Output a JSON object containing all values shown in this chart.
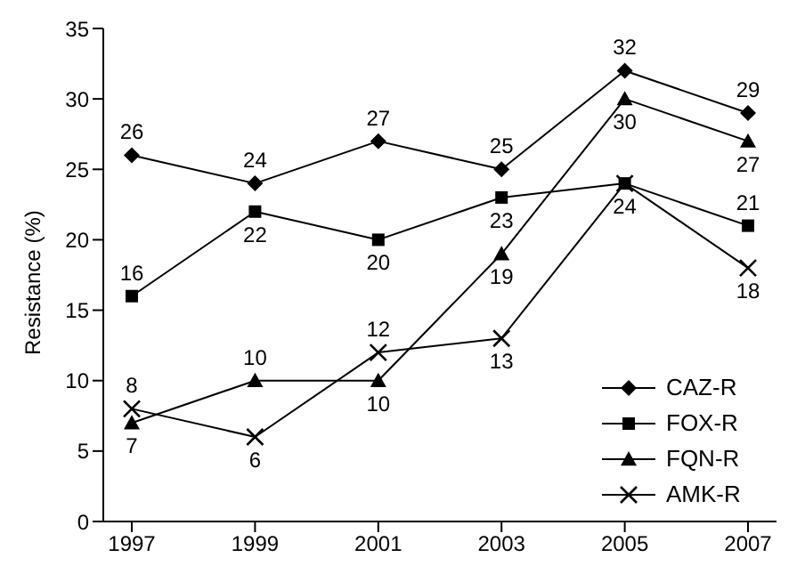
{
  "chart_data": {
    "type": "line",
    "ylabel": "Resistance (%)",
    "categories": [
      "1997",
      "1999",
      "2001",
      "2003",
      "2005",
      "2007"
    ],
    "series": [
      {
        "name": "CAZ-R",
        "color": "#000000",
        "marker": "diamond",
        "values": [
          26,
          24,
          27,
          25,
          32,
          29
        ],
        "value_labels": [
          "26",
          "24",
          "27",
          "25",
          "32",
          "29"
        ]
      },
      {
        "name": "FOX-R",
        "color": "#000000",
        "marker": "square",
        "values": [
          16,
          22,
          20,
          23,
          24,
          21
        ],
        "value_labels": [
          "16",
          "22",
          "20",
          "23",
          null,
          "21"
        ]
      },
      {
        "name": "FQN-R",
        "color": "#000000",
        "marker": "triangle",
        "values": [
          7,
          10,
          10,
          19,
          30,
          27
        ],
        "value_labels": [
          "7",
          "10",
          "10",
          "19",
          "30",
          "27"
        ]
      },
      {
        "name": "AMK-R",
        "color": "#000000",
        "marker": "cross",
        "values": [
          8,
          6,
          12,
          13,
          24,
          18
        ],
        "value_labels": [
          "8",
          "6",
          "12",
          "13",
          "24",
          "18"
        ]
      }
    ],
    "ylim": [
      0,
      35
    ],
    "yticks": [
      0,
      5,
      10,
      15,
      20,
      25,
      30,
      35
    ],
    "legend": "bottom right",
    "line_style": "solid"
  }
}
